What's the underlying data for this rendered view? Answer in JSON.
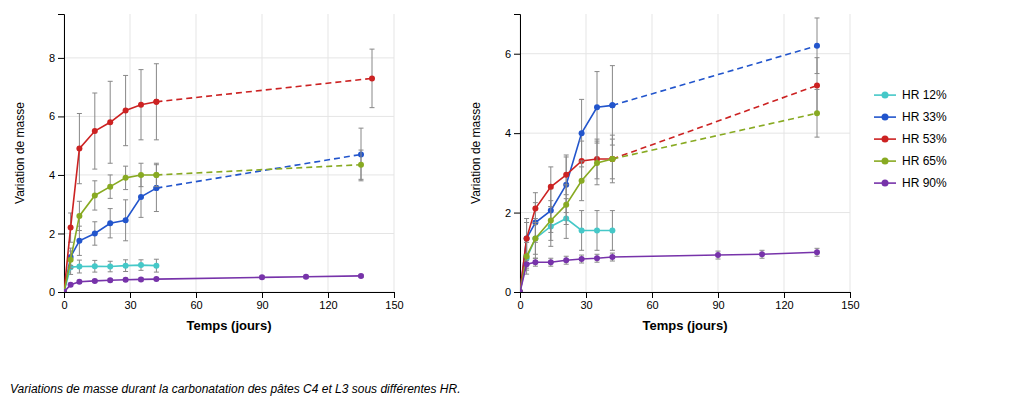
{
  "chart_data": [
    {
      "type": "line",
      "xlabel": "Temps (jours)",
      "ylabel": "Variation de masse",
      "caption": "Variations de masse durant la carbonatation des pâtes C4 et L3 sous différentes HR.",
      "xlim": [
        0,
        150
      ],
      "xticks": [
        0,
        30,
        60,
        90,
        120,
        150
      ],
      "ylim": [
        0,
        9.5
      ],
      "yticks": [
        0,
        2,
        4,
        6,
        8
      ],
      "grid": true,
      "series": [
        {
          "color": "#45C8C8",
          "line_style": "solid",
          "marker": "circle",
          "x": [
            0,
            3,
            7,
            14,
            21,
            28,
            35,
            42
          ],
          "values": [
            0,
            0.85,
            0.87,
            0.88,
            0.87,
            0.9,
            0.92,
            0.9
          ],
          "errors": [
            0,
            0.25,
            0.22,
            0.2,
            0.18,
            0.2,
            0.18,
            0.22
          ]
        },
        {
          "color": "#2255CC",
          "line_style": "solid",
          "marker": "circle",
          "x": [
            0,
            3,
            7,
            14,
            21,
            28,
            35,
            42
          ],
          "values": [
            0,
            1.2,
            1.75,
            2.0,
            2.35,
            2.45,
            3.25,
            3.55
          ],
          "errors": [
            0,
            0.3,
            0.5,
            0.4,
            0.5,
            0.7,
            0.7,
            0.8
          ]
        },
        {
          "color": "#2255CC",
          "line_style": "dashed",
          "marker": "circle",
          "x": [
            42,
            135
          ],
          "values": [
            3.55,
            4.7
          ],
          "errors": [
            null,
            0.9
          ]
        },
        {
          "color": "#CC2222",
          "line_style": "solid",
          "marker": "circle",
          "x": [
            0,
            3,
            7,
            14,
            21,
            28,
            35,
            42
          ],
          "values": [
            0,
            2.2,
            4.9,
            5.5,
            5.8,
            6.2,
            6.4,
            6.5
          ],
          "errors": [
            0,
            0.5,
            1.2,
            1.3,
            1.4,
            1.2,
            1.2,
            1.3
          ]
        },
        {
          "color": "#CC2222",
          "line_style": "dashed",
          "marker": "circle",
          "x": [
            42,
            140
          ],
          "values": [
            6.5,
            7.3
          ],
          "errors": [
            null,
            1.0
          ]
        },
        {
          "color": "#88AA22",
          "line_style": "solid",
          "marker": "circle",
          "x": [
            0,
            3,
            7,
            14,
            21,
            28,
            35,
            42
          ],
          "values": [
            0,
            1.1,
            2.6,
            3.3,
            3.6,
            3.9,
            4.0,
            4.0
          ],
          "errors": [
            0,
            0.3,
            0.5,
            0.5,
            0.4,
            0.4,
            0.4,
            0.4
          ]
        },
        {
          "color": "#88AA22",
          "line_style": "dashed",
          "marker": "circle",
          "x": [
            42,
            135
          ],
          "values": [
            4.0,
            4.35
          ],
          "errors": [
            null,
            0.5
          ]
        },
        {
          "color": "#7733AA",
          "line_style": "solid",
          "marker": "circle",
          "x": [
            0,
            3,
            7,
            14,
            21,
            28,
            35,
            42,
            90,
            110,
            135
          ],
          "values": [
            0,
            0.25,
            0.35,
            0.38,
            0.4,
            0.42,
            0.43,
            0.44,
            0.5,
            0.52,
            0.55
          ],
          "errors": [
            0,
            0.05,
            0.05,
            0.05,
            0.05,
            0.05,
            0.05,
            0.05,
            0.05,
            0.05,
            0.05
          ]
        }
      ]
    },
    {
      "type": "line",
      "xlabel": "Temps (jours)",
      "ylabel": "Variation de masse",
      "xlim": [
        0,
        150
      ],
      "xticks": [
        0,
        30,
        60,
        90,
        120,
        150
      ],
      "ylim": [
        0,
        7.0
      ],
      "yticks": [
        0,
        2,
        4,
        6
      ],
      "grid": true,
      "legend": "right",
      "series": [
        {
          "name": "HR 12%",
          "color": "#45C8C8",
          "line_style": "solid",
          "marker": "circle",
          "x": [
            0,
            3,
            7,
            14,
            21,
            28,
            35,
            42
          ],
          "values": [
            0,
            0.85,
            1.35,
            1.65,
            1.85,
            1.55,
            1.55,
            1.55
          ],
          "errors": [
            0,
            0.4,
            0.5,
            0.5,
            0.5,
            0.5,
            0.5,
            0.5
          ]
        },
        {
          "name": "HR 33%",
          "color": "#2255CC",
          "line_style": "solid",
          "marker": "circle",
          "x": [
            0,
            3,
            7,
            14,
            21,
            28,
            35,
            42
          ],
          "values": [
            0,
            1.35,
            1.75,
            2.05,
            2.7,
            4.0,
            4.65,
            4.7
          ],
          "errors": [
            0,
            0.5,
            0.5,
            0.55,
            0.7,
            0.85,
            0.9,
            1.0
          ]
        },
        {
          "color": "#2255CC",
          "line_style": "dashed",
          "marker": "circle",
          "x": [
            42,
            135
          ],
          "values": [
            4.7,
            6.2
          ],
          "errors": [
            null,
            0.7
          ]
        },
        {
          "name": "HR 53%",
          "color": "#CC2222",
          "line_style": "solid",
          "marker": "circle",
          "x": [
            0,
            3,
            7,
            14,
            21,
            28,
            35,
            42
          ],
          "values": [
            0,
            1.35,
            2.1,
            2.65,
            2.95,
            3.3,
            3.35,
            3.35
          ],
          "errors": [
            0,
            0.4,
            0.4,
            0.5,
            0.5,
            0.5,
            0.5,
            0.5
          ]
        },
        {
          "color": "#CC2222",
          "line_style": "dashed",
          "marker": "circle",
          "x": [
            42,
            135
          ],
          "values": [
            3.35,
            5.2
          ],
          "errors": [
            null,
            0.7
          ]
        },
        {
          "name": "HR 65%",
          "color": "#88AA22",
          "line_style": "solid",
          "marker": "circle",
          "x": [
            0,
            3,
            7,
            14,
            21,
            28,
            35,
            42
          ],
          "values": [
            0,
            0.9,
            1.35,
            1.8,
            2.2,
            2.8,
            3.25,
            3.35
          ],
          "errors": [
            0,
            0.35,
            0.4,
            0.5,
            0.5,
            0.5,
            0.55,
            0.6
          ]
        },
        {
          "color": "#88AA22",
          "line_style": "dashed",
          "marker": "circle",
          "x": [
            42,
            135
          ],
          "values": [
            3.35,
            4.5
          ],
          "errors": [
            null,
            0.6
          ]
        },
        {
          "name": "HR 90%",
          "color": "#7733AA",
          "line_style": "solid",
          "marker": "circle",
          "x": [
            0,
            3,
            7,
            14,
            21,
            28,
            35,
            42,
            90,
            110,
            135
          ],
          "values": [
            0,
            0.7,
            0.75,
            0.75,
            0.8,
            0.83,
            0.85,
            0.88,
            0.93,
            0.95,
            1.0
          ],
          "errors": [
            0,
            0.1,
            0.1,
            0.1,
            0.1,
            0.1,
            0.1,
            0.1,
            0.1,
            0.1,
            0.1
          ]
        }
      ]
    }
  ]
}
